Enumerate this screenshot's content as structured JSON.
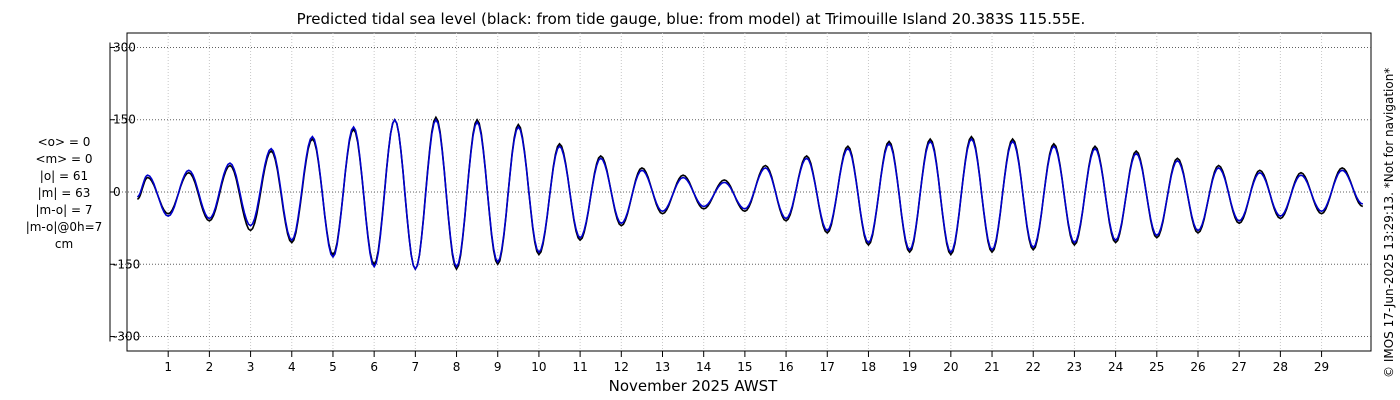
{
  "chart_data": {
    "type": "line",
    "title": "Predicted tidal sea level (black: from tide gauge, blue: from model) at Trimouille Island 20.383S 115.55E.",
    "xlabel": "November 2025 AWST",
    "ylabel": "",
    "ylim": [
      -330,
      330
    ],
    "xlim": [
      0,
      30.2
    ],
    "yticks": [
      300,
      150,
      0,
      -150,
      -300
    ],
    "ytick_labels": [
      "300",
      "150",
      "0",
      "-150",
      "-300"
    ],
    "xticks": [
      1,
      2,
      3,
      4,
      5,
      6,
      7,
      8,
      9,
      10,
      11,
      12,
      13,
      14,
      15,
      16,
      17,
      18,
      19,
      20,
      21,
      22,
      23,
      24,
      25,
      26,
      27,
      28,
      29
    ],
    "xtick_labels": [
      "1",
      "2",
      "3",
      "4",
      "5",
      "6",
      "7",
      "8",
      "9",
      "10",
      "11",
      "12",
      "13",
      "14",
      "15",
      "16",
      "17",
      "18",
      "19",
      "20",
      "21",
      "22",
      "23",
      "24",
      "25",
      "26",
      "27",
      "28",
      "29"
    ],
    "grid": true,
    "legend": "none",
    "series": [
      {
        "name": "from tide gauge",
        "color": "#000000",
        "x": [
          0.25,
          0.5,
          1.0,
          1.5,
          2.0,
          2.5,
          3.0,
          3.5,
          4.0,
          4.5,
          5.0,
          5.5,
          6.0,
          6.5,
          7.0,
          7.5,
          8.0,
          8.5,
          9.0,
          9.5,
          10.0,
          10.5,
          11.0,
          11.5,
          12.0,
          12.5,
          13.0,
          13.5,
          14.0,
          14.5,
          15.0,
          15.5,
          16.0,
          16.5,
          17.0,
          17.5,
          18.0,
          18.5,
          19.0,
          19.5,
          20.0,
          20.5,
          21.0,
          21.5,
          22.0,
          22.5,
          23.0,
          23.5,
          24.0,
          24.5,
          25.0,
          25.5,
          26.0,
          26.5,
          27.0,
          27.5,
          28.0,
          28.5,
          29.0,
          29.5,
          30.0
        ],
        "values": [
          -15,
          30,
          -45,
          40,
          -60,
          55,
          -80,
          85,
          -105,
          110,
          -130,
          130,
          -150,
          150,
          -160,
          155,
          -160,
          150,
          -150,
          140,
          -130,
          100,
          -100,
          75,
          -70,
          50,
          -45,
          35,
          -35,
          25,
          -40,
          55,
          -60,
          75,
          -85,
          95,
          -110,
          105,
          -125,
          110,
          -130,
          115,
          -125,
          110,
          -120,
          100,
          -110,
          95,
          -105,
          85,
          -95,
          70,
          -85,
          55,
          -65,
          45,
          -55,
          40,
          -45,
          50,
          -30
        ]
      },
      {
        "name": "from model",
        "color": "#0000cc",
        "x": [
          0.25,
          0.5,
          1.0,
          1.5,
          2.0,
          2.5,
          3.0,
          3.5,
          4.0,
          4.5,
          5.0,
          5.5,
          6.0,
          6.5,
          7.0,
          7.5,
          8.0,
          8.5,
          9.0,
          9.5,
          10.0,
          10.5,
          11.0,
          11.5,
          12.0,
          12.5,
          13.0,
          13.5,
          14.0,
          14.5,
          15.0,
          15.5,
          16.0,
          16.5,
          17.0,
          17.5,
          18.0,
          18.5,
          19.0,
          19.5,
          20.0,
          20.5,
          21.0,
          21.5,
          22.0,
          22.5,
          23.0,
          23.5,
          24.0,
          24.5,
          25.0,
          25.5,
          26.0,
          26.5,
          27.0,
          27.5,
          28.0,
          28.5,
          29.0,
          29.5,
          30.0
        ],
        "values": [
          -10,
          35,
          -50,
          45,
          -55,
          60,
          -70,
          90,
          -100,
          115,
          -135,
          135,
          -155,
          150,
          -160,
          150,
          -155,
          145,
          -145,
          135,
          -125,
          95,
          -95,
          70,
          -65,
          45,
          -40,
          30,
          -30,
          20,
          -35,
          50,
          -55,
          70,
          -80,
          90,
          -105,
          100,
          -120,
          105,
          -125,
          110,
          -120,
          105,
          -115,
          95,
          -105,
          90,
          -100,
          80,
          -90,
          65,
          -80,
          50,
          -60,
          40,
          -50,
          35,
          -40,
          45,
          -25
        ]
      }
    ],
    "stats_lines": [
      "<o> = 0",
      "<m> = 0",
      "|o| = 61",
      "|m| = 63",
      "|m-o| = 7",
      "|m-o|@0h=7",
      "cm"
    ],
    "side_note": "© IMOS 17-Jun-2025 13:29:13. *Not for navigation*"
  }
}
